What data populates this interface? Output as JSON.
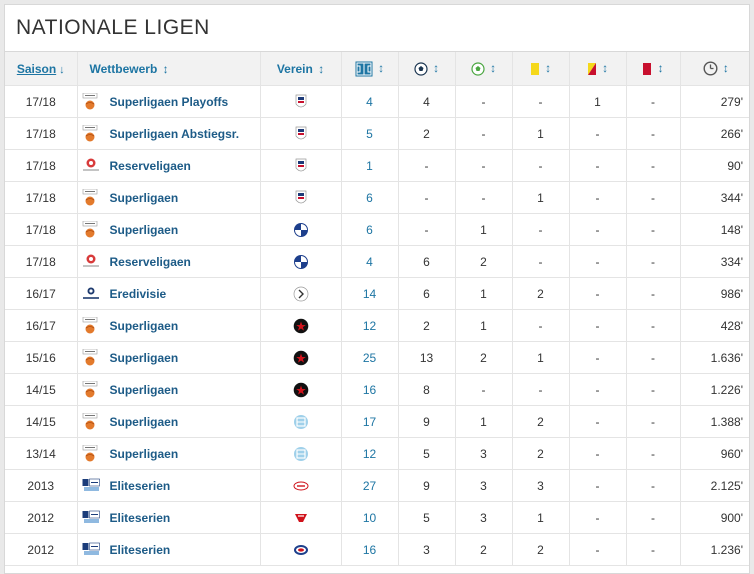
{
  "title": "NATIONALE LIGEN",
  "headers": {
    "saison": "Saison",
    "wettbewerb": "Wettbewerb",
    "verein": "Verein",
    "sort_icon": "↕",
    "sort_down_icon": "↓"
  },
  "header_icons": [
    "appearances-icon",
    "goals-icon",
    "assists-icon",
    "yellow-card-icon",
    "yellow-red-card-icon",
    "red-card-icon",
    "minutes-clock-icon"
  ],
  "colors": {
    "link": "#1d75a3",
    "competition": "#1d5b87",
    "yellow": "#f5d81b",
    "red": "#c8102e"
  },
  "rows": [
    {
      "saison": "17/18",
      "comp": "Superligaen Playoffs",
      "comp_logo": "superligaen-logo",
      "club": "agf-crest",
      "apps": "4",
      "goals": "4",
      "assists": "-",
      "yellow": "-",
      "yellowred": "1",
      "red": "-",
      "minutes": "279'"
    },
    {
      "saison": "17/18",
      "comp": "Superligaen Abstiegsr.",
      "comp_logo": "superligaen-logo",
      "club": "agf-crest",
      "apps": "5",
      "goals": "2",
      "assists": "-",
      "yellow": "1",
      "yellowred": "-",
      "red": "-",
      "minutes": "266'"
    },
    {
      "saison": "17/18",
      "comp": "Reserveligaen",
      "comp_logo": "reserveligaen-logo",
      "club": "agf-crest",
      "apps": "1",
      "goals": "-",
      "assists": "-",
      "yellow": "-",
      "yellowred": "-",
      "red": "-",
      "minutes": "90'"
    },
    {
      "saison": "17/18",
      "comp": "Superligaen",
      "comp_logo": "superligaen-logo",
      "club": "agf-crest",
      "apps": "6",
      "goals": "-",
      "assists": "-",
      "yellow": "1",
      "yellowred": "-",
      "red": "-",
      "minutes": "344'"
    },
    {
      "saison": "17/18",
      "comp": "Superligaen",
      "comp_logo": "superligaen-logo",
      "club": "fck-crest",
      "apps": "6",
      "goals": "-",
      "assists": "1",
      "yellow": "-",
      "yellowred": "-",
      "red": "-",
      "minutes": "148'"
    },
    {
      "saison": "17/18",
      "comp": "Reserveligaen",
      "comp_logo": "reserveligaen-logo",
      "club": "fck-crest",
      "apps": "4",
      "goals": "6",
      "assists": "2",
      "yellow": "-",
      "yellowred": "-",
      "red": "-",
      "minutes": "334'"
    },
    {
      "saison": "16/17",
      "comp": "Eredivisie",
      "comp_logo": "eredivisie-logo",
      "club": "heracles-crest",
      "apps": "14",
      "goals": "6",
      "assists": "1",
      "yellow": "2",
      "yellowred": "-",
      "red": "-",
      "minutes": "986'"
    },
    {
      "saison": "16/17",
      "comp": "Superligaen",
      "comp_logo": "superligaen-logo",
      "club": "fcm-crest",
      "apps": "12",
      "goals": "2",
      "assists": "1",
      "yellow": "-",
      "yellowred": "-",
      "red": "-",
      "minutes": "428'"
    },
    {
      "saison": "15/16",
      "comp": "Superligaen",
      "comp_logo": "superligaen-logo",
      "club": "fcm-crest",
      "apps": "25",
      "goals": "13",
      "assists": "2",
      "yellow": "1",
      "yellowred": "-",
      "red": "-",
      "minutes": "1.636'"
    },
    {
      "saison": "14/15",
      "comp": "Superligaen",
      "comp_logo": "superligaen-logo",
      "club": "fcm-crest",
      "apps": "16",
      "goals": "8",
      "assists": "-",
      "yellow": "-",
      "yellowred": "-",
      "red": "-",
      "minutes": "1.226'"
    },
    {
      "saison": "14/15",
      "comp": "Superligaen",
      "comp_logo": "superligaen-logo",
      "club": "esbjerg-crest",
      "apps": "17",
      "goals": "9",
      "assists": "1",
      "yellow": "2",
      "yellowred": "-",
      "red": "-",
      "minutes": "1.388'"
    },
    {
      "saison": "13/14",
      "comp": "Superligaen",
      "comp_logo": "superligaen-logo",
      "club": "esbjerg-crest",
      "apps": "12",
      "goals": "5",
      "assists": "3",
      "yellow": "2",
      "yellowred": "-",
      "red": "-",
      "minutes": "960'"
    },
    {
      "saison": "2013",
      "comp": "Eliteserien",
      "comp_logo": "eliteserien-logo",
      "club": "brann-crest",
      "apps": "27",
      "goals": "9",
      "assists": "3",
      "yellow": "3",
      "yellowred": "-",
      "red": "-",
      "minutes": "2.125'"
    },
    {
      "saison": "2012",
      "comp": "Eliteserien",
      "comp_logo": "eliteserien-logo",
      "club": "brann-red-crest",
      "apps": "10",
      "goals": "5",
      "assists": "3",
      "yellow": "1",
      "yellowred": "-",
      "red": "-",
      "minutes": "900'"
    },
    {
      "saison": "2012",
      "comp": "Eliteserien",
      "comp_logo": "eliteserien-logo",
      "club": "valerenga-crest",
      "apps": "16",
      "goals": "3",
      "assists": "2",
      "yellow": "2",
      "yellowred": "-",
      "red": "-",
      "minutes": "1.236'"
    }
  ]
}
